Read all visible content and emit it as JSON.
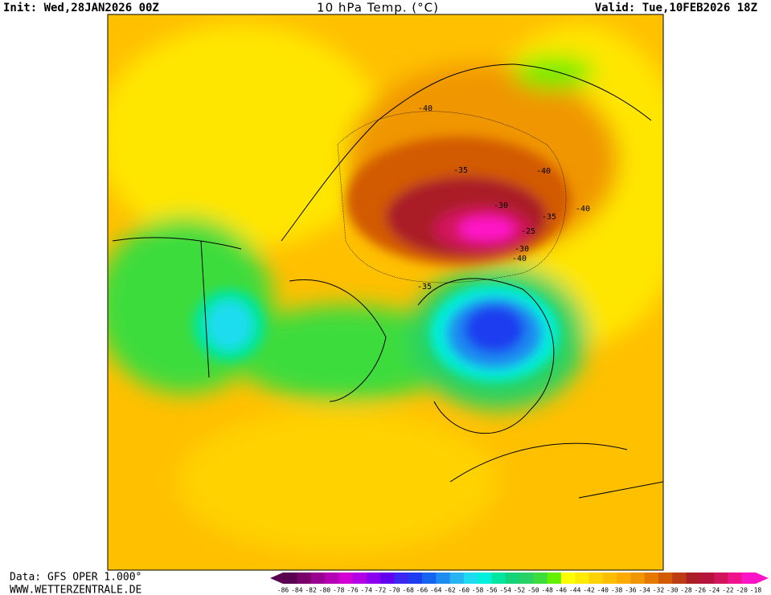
{
  "header": {
    "init": "Init: Wed,28JAN2026 00Z",
    "title": "10 hPa Temp. (°C)",
    "valid": "Valid: Tue,10FEB2026 18Z"
  },
  "map": {
    "contour_labels": [
      "-40",
      "-35",
      "-40",
      "-40",
      "-30",
      "-35",
      "-25",
      "-30",
      "-40",
      "-35"
    ]
  },
  "footer": {
    "source": "Data: GFS OPER 1.000°",
    "website": "WWW.WETTERZENTRALE.DE"
  },
  "colorbar": {
    "labels": [
      -86,
      -84,
      -82,
      -80,
      -78,
      -76,
      -74,
      -72,
      -70,
      -68,
      -66,
      -64,
      -62,
      -60,
      -58,
      -56,
      -54,
      -52,
      -50,
      -48,
      -46,
      -44,
      -42,
      -40,
      -38,
      -36,
      -34,
      -32,
      -30,
      -28,
      -26,
      -24,
      -22,
      -20,
      -18
    ],
    "colors": [
      "#5a0050",
      "#7a006a",
      "#9a0090",
      "#b400b4",
      "#d200d2",
      "#b400e6",
      "#8c00f0",
      "#6400f0",
      "#3c28f0",
      "#1e3cf0",
      "#1464f0",
      "#1e8cf0",
      "#28b4f0",
      "#1edcf0",
      "#00f0dc",
      "#00e6a0",
      "#14d278",
      "#28d264",
      "#3cdc3c",
      "#64f000",
      "#ffff00",
      "#ffeb00",
      "#ffd200",
      "#ffbe00",
      "#ffaa00",
      "#f09600",
      "#e67800",
      "#d25a00",
      "#be3c14",
      "#aa1e28",
      "#b4143c",
      "#d2145a",
      "#f0148c",
      "#ff14c8"
    ]
  }
}
